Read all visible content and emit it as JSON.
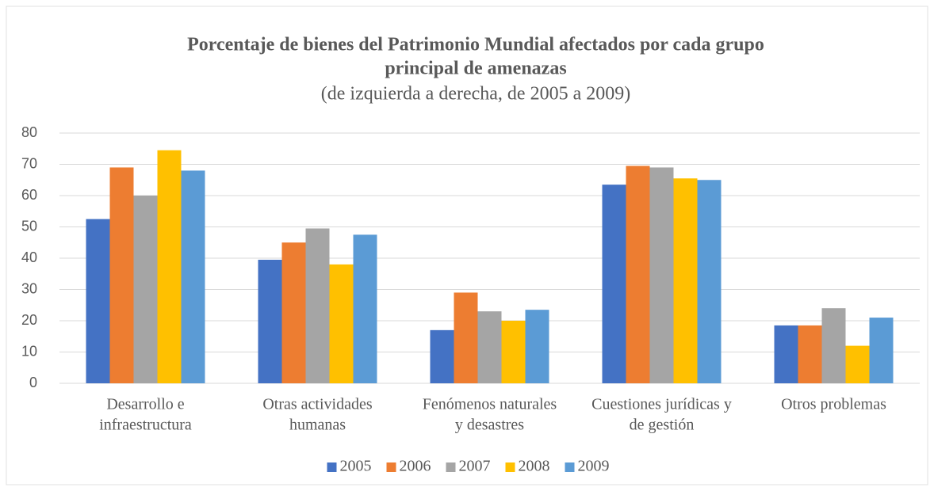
{
  "chart_data": {
    "type": "bar",
    "title": [
      "Porcentaje de bienes del Patrimonio Mundial afectados por cada grupo",
      "principal de amenazas"
    ],
    "subtitle": "(de izquierda a derecha, de 2005 a 2009)",
    "categories": [
      [
        "Desarrollo e",
        "infraestructura"
      ],
      [
        "Otras actividades",
        "humanas"
      ],
      [
        "Fenómenos naturales",
        "y desastres"
      ],
      [
        "Cuestiones jurídicas y",
        "de gestión"
      ],
      [
        "Otros problemas"
      ]
    ],
    "series": [
      {
        "name": "2005",
        "color": "#4472c4",
        "values": [
          52.5,
          39.5,
          17,
          63.5,
          18.5
        ]
      },
      {
        "name": "2006",
        "color": "#ed7d31",
        "values": [
          69,
          45,
          29,
          69.5,
          18.5
        ]
      },
      {
        "name": "2007",
        "color": "#a5a5a5",
        "values": [
          60,
          49.5,
          23,
          69,
          24
        ]
      },
      {
        "name": "2008",
        "color": "#ffc000",
        "values": [
          74.5,
          38,
          20,
          65.5,
          12
        ]
      },
      {
        "name": "2009",
        "color": "#5b9bd5",
        "values": [
          68,
          47.5,
          23.5,
          65,
          21
        ]
      }
    ],
    "ylim": [
      0,
      80
    ],
    "yticks": [
      0,
      10,
      20,
      30,
      40,
      50,
      60,
      70,
      80
    ],
    "grid": true,
    "legend": "bottom"
  }
}
